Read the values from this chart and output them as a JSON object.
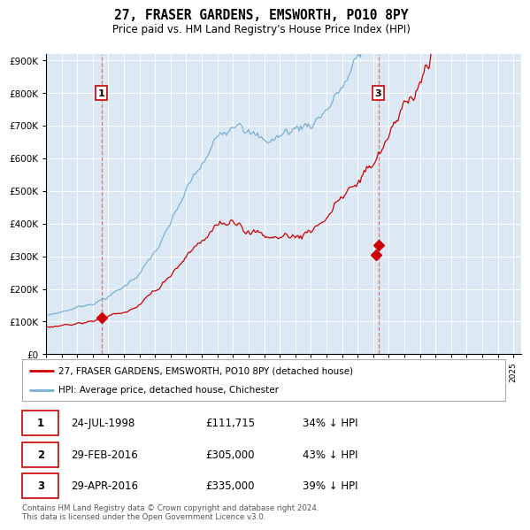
{
  "title": "27, FRASER GARDENS, EMSWORTH, PO10 8PY",
  "subtitle": "Price paid vs. HM Land Registry's House Price Index (HPI)",
  "bg_color": "#dce9f5",
  "red_line_color": "#cc0000",
  "blue_line_color": "#7ab0d4",
  "dashed_color": "#e06060",
  "ylim": [
    0,
    920000
  ],
  "yticks": [
    0,
    100000,
    200000,
    300000,
    400000,
    500000,
    600000,
    700000,
    800000,
    900000
  ],
  "xstart": 1995.0,
  "xend": 2025.5,
  "sale1_date": 1998.56,
  "sale1_price": 111715,
  "sale2_date": 2016.16,
  "sale2_price": 305000,
  "sale3_date": 2016.33,
  "sale3_price": 335000,
  "legend_red": "27, FRASER GARDENS, EMSWORTH, PO10 8PY (detached house)",
  "legend_blue": "HPI: Average price, detached house, Chichester",
  "table_rows": [
    [
      "1",
      "24-JUL-1998",
      "£111,715",
      "34% ↓ HPI"
    ],
    [
      "2",
      "29-FEB-2016",
      "£305,000",
      "43% ↓ HPI"
    ],
    [
      "3",
      "29-APR-2016",
      "£335,000",
      "39% ↓ HPI"
    ]
  ],
  "footer": "Contains HM Land Registry data © Crown copyright and database right 2024.\nThis data is licensed under the Open Government Licence v3.0."
}
